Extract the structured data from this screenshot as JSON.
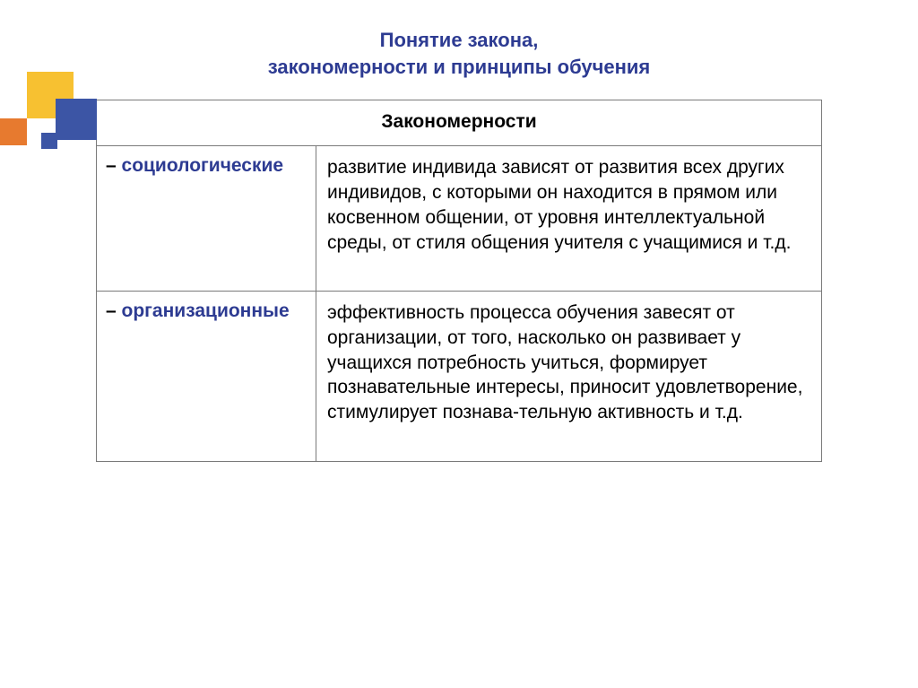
{
  "colors": {
    "title": "#2d3b92",
    "category": "#2d3b92",
    "header_text": "#000000",
    "body_text": "#000000",
    "border": "#7a7a7a",
    "bg": "#ffffff",
    "decor_yellow": "#f7c131",
    "decor_blue": "#3c55a5",
    "decor_orange": "#e77a2f"
  },
  "fonts": {
    "title_size": 22,
    "header_size": 21,
    "body_size": 21
  },
  "title": {
    "line1": "Понятие закона,",
    "line2": "закономерности и принципы обучения"
  },
  "table": {
    "header": "Закономерности",
    "rows": [
      {
        "category": "социологические",
        "description": "развитие индивида зависят от развития всех других индивидов, с которыми он находится в прямом или косвенном общении, от уровня интеллектуальной среды, от стиля общения учителя с учащимися и т.д."
      },
      {
        "category": "организационные",
        "description": "эффективность процесса обучения завесят от организации, от того, насколько он развивает у учащихся потребность учиться, формирует познавательные интересы, приносит удовлетворение, стимулирует познава-тельную активность и т.д."
      }
    ]
  }
}
